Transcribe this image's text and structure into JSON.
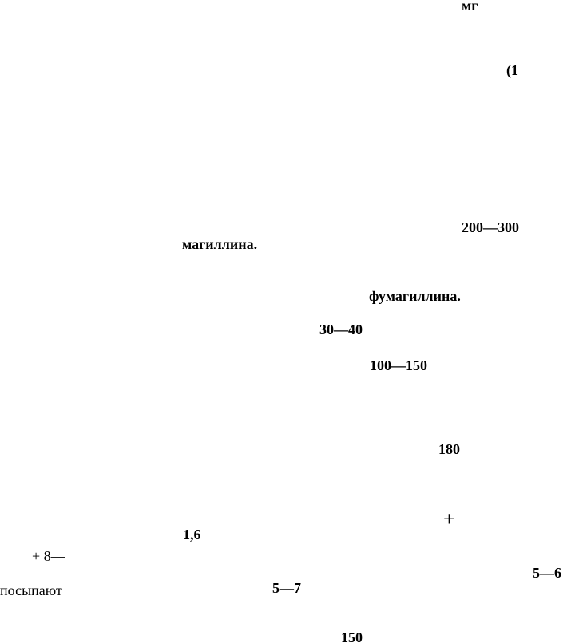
{
  "fragments": [
    "мг",
    "(1",
    "200—300",
    "магиллина.",
    "фумагиллина.",
    "30—40",
    "100—150",
    "180",
    "+",
    "1,6",
    "+ 8—",
    "5—6",
    "посыпают",
    "5—7",
    "150"
  ]
}
